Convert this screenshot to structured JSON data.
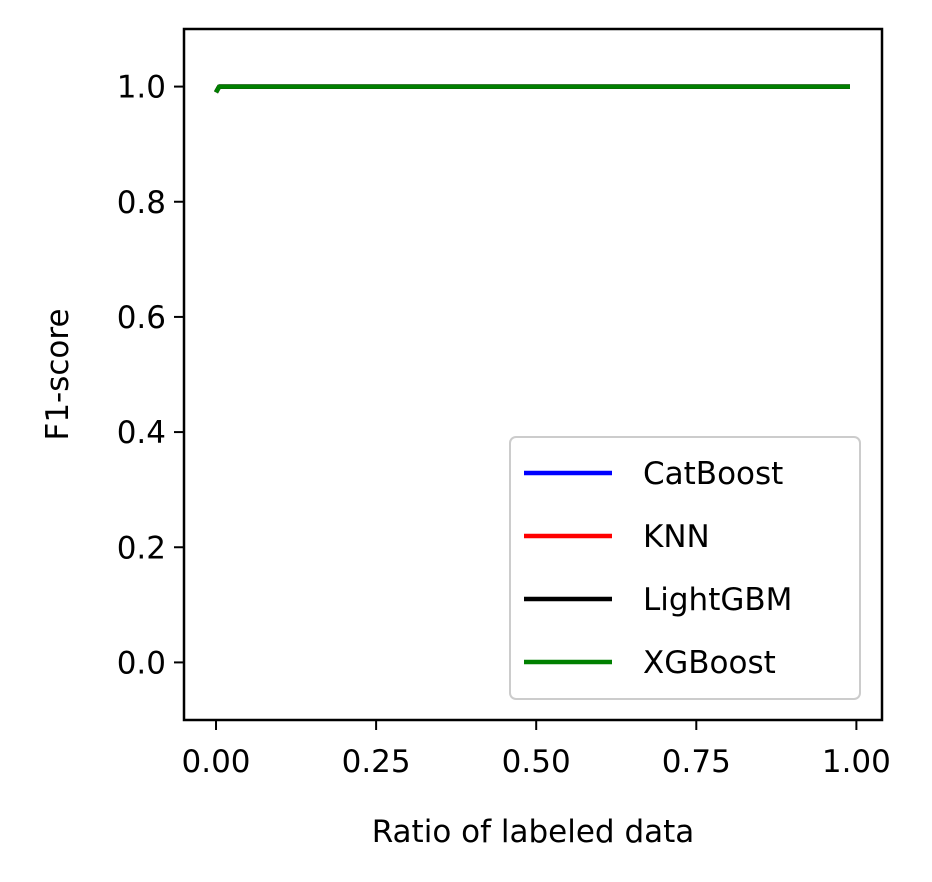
{
  "chart_data": {
    "type": "line",
    "title": "",
    "xlabel": "Ratio of labeled data",
    "ylabel": "F1-score",
    "xlim": [
      -0.05,
      1.04
    ],
    "ylim": [
      -0.1,
      1.1
    ],
    "xticks": [
      0.0,
      0.25,
      0.5,
      0.75,
      1.0
    ],
    "xtick_labels": [
      "0.00",
      "0.25",
      "0.50",
      "0.75",
      "1.00"
    ],
    "yticks": [
      0.0,
      0.2,
      0.4,
      0.6,
      0.8,
      1.0
    ],
    "ytick_labels": [
      "0.0",
      "0.2",
      "0.4",
      "0.6",
      "0.8",
      "1.0"
    ],
    "grid": false,
    "legend_position": "lower-right",
    "series": [
      {
        "name": "CatBoost",
        "color": "#0000ff",
        "x": [
          0.0,
          0.005,
          0.01,
          0.05,
          0.1,
          0.2,
          0.3,
          0.4,
          0.5,
          0.6,
          0.7,
          0.8,
          0.9,
          0.99
        ],
        "y": [
          0.99,
          1.0,
          1.0,
          1.0,
          1.0,
          1.0,
          1.0,
          1.0,
          1.0,
          1.0,
          1.0,
          1.0,
          1.0,
          1.0
        ]
      },
      {
        "name": "KNN",
        "color": "#ff0000",
        "x": [
          0.0,
          0.005,
          0.01,
          0.05,
          0.1,
          0.2,
          0.3,
          0.4,
          0.5,
          0.6,
          0.7,
          0.8,
          0.9,
          0.99
        ],
        "y": [
          0.99,
          1.0,
          1.0,
          1.0,
          1.0,
          1.0,
          1.0,
          1.0,
          1.0,
          1.0,
          1.0,
          1.0,
          1.0,
          1.0
        ]
      },
      {
        "name": "LightGBM",
        "color": "#000000",
        "x": [
          0.0,
          0.005,
          0.01,
          0.05,
          0.1,
          0.2,
          0.3,
          0.4,
          0.5,
          0.6,
          0.7,
          0.8,
          0.9,
          0.99
        ],
        "y": [
          0.99,
          1.0,
          1.0,
          1.0,
          1.0,
          1.0,
          1.0,
          1.0,
          1.0,
          1.0,
          1.0,
          1.0,
          1.0,
          1.0
        ]
      },
      {
        "name": "XGBoost",
        "color": "#008000",
        "x": [
          0.0,
          0.005,
          0.01,
          0.05,
          0.1,
          0.2,
          0.3,
          0.4,
          0.5,
          0.6,
          0.7,
          0.8,
          0.9,
          0.99
        ],
        "y": [
          0.99,
          1.0,
          1.0,
          1.0,
          1.0,
          1.0,
          1.0,
          1.0,
          1.0,
          1.0,
          1.0,
          1.0,
          1.0,
          1.0
        ]
      }
    ]
  }
}
